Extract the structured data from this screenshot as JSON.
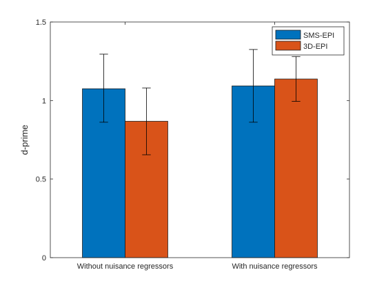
{
  "chart_data": {
    "type": "bar",
    "title": "",
    "xlabel": "",
    "ylabel": "d-prime",
    "ylim": [
      0,
      1.5
    ],
    "yticks": [
      0,
      0.5,
      1,
      1.5
    ],
    "ytick_labels": [
      "0",
      "0.5",
      "1",
      "1.5"
    ],
    "categories": [
      "Without nuisance regressors",
      "With nuisance regressors"
    ],
    "series": [
      {
        "name": "SMS-EPI",
        "color": "#0072BD",
        "values": [
          1.075,
          1.093
        ],
        "error_low": [
          0.862,
          0.862
        ],
        "error_high": [
          1.295,
          1.325
        ]
      },
      {
        "name": "3D-EPI",
        "color": "#D95319",
        "values": [
          0.868,
          1.137
        ],
        "error_low": [
          0.655,
          0.995
        ],
        "error_high": [
          1.08,
          1.28
        ]
      }
    ],
    "grid": false,
    "legend_position": "top-right"
  }
}
